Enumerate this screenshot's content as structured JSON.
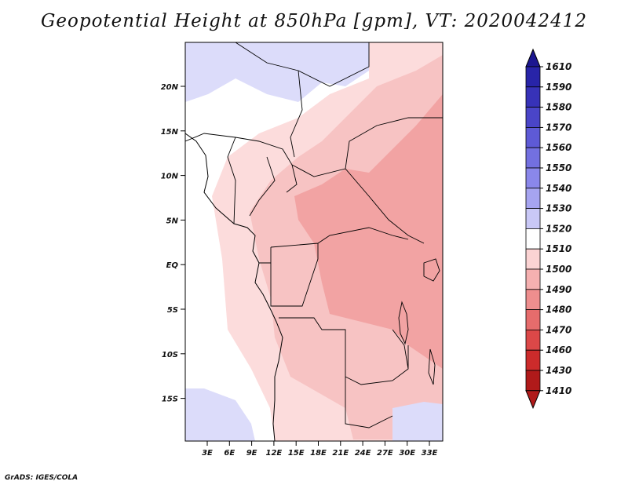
{
  "title": "Geopotential Height at 850hPa [gpm], VT: 2020042412",
  "footer": "GrADS: IGES/COLA",
  "y_axis_labels": [
    "20N",
    "15N",
    "10N",
    "5N",
    "EQ",
    "5S",
    "10S",
    "15S"
  ],
  "x_axis_labels": [
    "3E",
    "6E",
    "9E",
    "12E",
    "15E",
    "18E",
    "21E",
    "24E",
    "27E",
    "30E",
    "33E"
  ],
  "colorbar": {
    "levels": [
      "1610",
      "1590",
      "1580",
      "1570",
      "1560",
      "1550",
      "1540",
      "1530",
      "1520",
      "1510",
      "1500",
      "1490",
      "1480",
      "1470",
      "1460",
      "1430",
      "1410"
    ],
    "colors": [
      "#1c1790",
      "#2824a8",
      "#3732b8",
      "#4a45c8",
      "#5e5ad6",
      "#7370e0",
      "#8a87ea",
      "#a6a4f0",
      "#c9c8f6",
      "#ffffff",
      "#fbd3d3",
      "#f5b0b0",
      "#ee8e8e",
      "#e66c6c",
      "#dc4848",
      "#cc2b2b",
      "#b01a1a"
    ]
  },
  "colors": {
    "blue_region": "#dcdcfa",
    "light_pink": "#fcdcdc",
    "mid_pink": "#f7c3c3",
    "deep_pink": "#f2a3a3",
    "border": "#000000"
  }
}
